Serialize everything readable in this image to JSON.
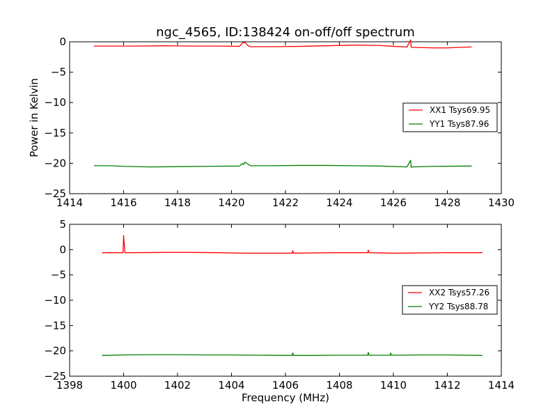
{
  "chart_data": [
    {
      "type": "line",
      "title": "ngc_4565, ID:138424 on-off/off spectrum",
      "xlabel": "",
      "ylabel": "Power in Kelvin",
      "xlim": [
        1414,
        1430
      ],
      "ylim": [
        -25,
        0
      ],
      "xticks": [
        "1414",
        "1416",
        "1418",
        "1420",
        "1422",
        "1424",
        "1426",
        "1428",
        "1430"
      ],
      "yticks": [
        "0",
        "−5",
        "−10",
        "−15",
        "−20",
        "−25"
      ],
      "legend_position": "center-right",
      "grid": false,
      "series": [
        {
          "name": "XX1 Tsys69.95",
          "color": "#ff0000",
          "x": [
            1414.9,
            1415.5,
            1416.5,
            1417.5,
            1418.5,
            1419.5,
            1420.3,
            1420.4,
            1420.5,
            1420.6,
            1420.7,
            1421.5,
            1422.5,
            1423.5,
            1424.5,
            1425.5,
            1426.0,
            1426.5,
            1426.64,
            1426.66,
            1426.68,
            1427.0,
            1427.5,
            1428.0,
            1428.5,
            1428.9
          ],
          "y": [
            -0.7,
            -0.7,
            -0.7,
            -0.65,
            -0.7,
            -0.7,
            -0.75,
            -0.2,
            -0.1,
            -0.6,
            -0.8,
            -0.8,
            -0.75,
            -0.65,
            -0.55,
            -0.6,
            -0.75,
            -0.85,
            0.3,
            -0.9,
            -0.9,
            -0.95,
            -1.0,
            -1.0,
            -0.9,
            -0.85
          ]
        },
        {
          "name": "YY1 Tsys87.96",
          "color": "#008000",
          "x": [
            1414.9,
            1415.5,
            1416.0,
            1417.0,
            1418.0,
            1419.0,
            1420.3,
            1420.4,
            1420.45,
            1420.5,
            1420.6,
            1420.7,
            1421.5,
            1422.5,
            1423.5,
            1424.5,
            1425.5,
            1426.5,
            1426.64,
            1426.66,
            1426.68,
            1427.5,
            1428.9
          ],
          "y": [
            -20.4,
            -20.4,
            -20.5,
            -20.6,
            -20.55,
            -20.5,
            -20.45,
            -20.0,
            -20.2,
            -19.8,
            -20.1,
            -20.4,
            -20.4,
            -20.35,
            -20.35,
            -20.4,
            -20.45,
            -20.6,
            -19.5,
            -20.7,
            -20.6,
            -20.5,
            -20.45
          ]
        }
      ]
    },
    {
      "type": "line",
      "title": "",
      "xlabel": "Frequency (MHz)",
      "ylabel": "",
      "xlim": [
        1398,
        1414
      ],
      "ylim": [
        -25,
        5
      ],
      "xticks": [
        "1398",
        "1400",
        "1402",
        "1404",
        "1406",
        "1408",
        "1410",
        "1412",
        "1414"
      ],
      "yticks": [
        "5",
        "0",
        "−5",
        "−10",
        "−15",
        "−20",
        "−25"
      ],
      "legend_position": "center-right",
      "grid": false,
      "series": [
        {
          "name": "XX2 Tsys57.26",
          "color": "#ff0000",
          "x": [
            1399.2,
            1399.6,
            1399.98,
            1400.0,
            1400.05,
            1400.3,
            1401.5,
            1402.5,
            1403.5,
            1404.5,
            1405.5,
            1406.25,
            1406.27,
            1406.3,
            1407.0,
            1408.0,
            1409.05,
            1409.07,
            1409.1,
            1410.0,
            1411.0,
            1412.0,
            1413.3
          ],
          "y": [
            -0.6,
            -0.6,
            -0.6,
            2.8,
            -0.6,
            -0.6,
            -0.55,
            -0.55,
            -0.6,
            -0.7,
            -0.7,
            -0.7,
            -0.2,
            -0.7,
            -0.65,
            -0.6,
            -0.6,
            -0.1,
            -0.6,
            -0.7,
            -0.65,
            -0.6,
            -0.6
          ]
        },
        {
          "name": "YY2 Tsys88.78",
          "color": "#008000",
          "x": [
            1399.2,
            1400.0,
            1401.0,
            1402.0,
            1403.0,
            1404.0,
            1405.0,
            1406.25,
            1406.27,
            1406.3,
            1407.0,
            1408.0,
            1409.05,
            1409.07,
            1409.1,
            1409.88,
            1409.9,
            1409.92,
            1411.0,
            1412.0,
            1413.3
          ],
          "y": [
            -20.9,
            -20.8,
            -20.75,
            -20.75,
            -20.8,
            -20.8,
            -20.85,
            -20.9,
            -20.4,
            -20.9,
            -20.9,
            -20.85,
            -20.85,
            -20.3,
            -20.85,
            -20.85,
            -20.4,
            -20.85,
            -20.8,
            -20.8,
            -20.9
          ]
        }
      ]
    }
  ]
}
